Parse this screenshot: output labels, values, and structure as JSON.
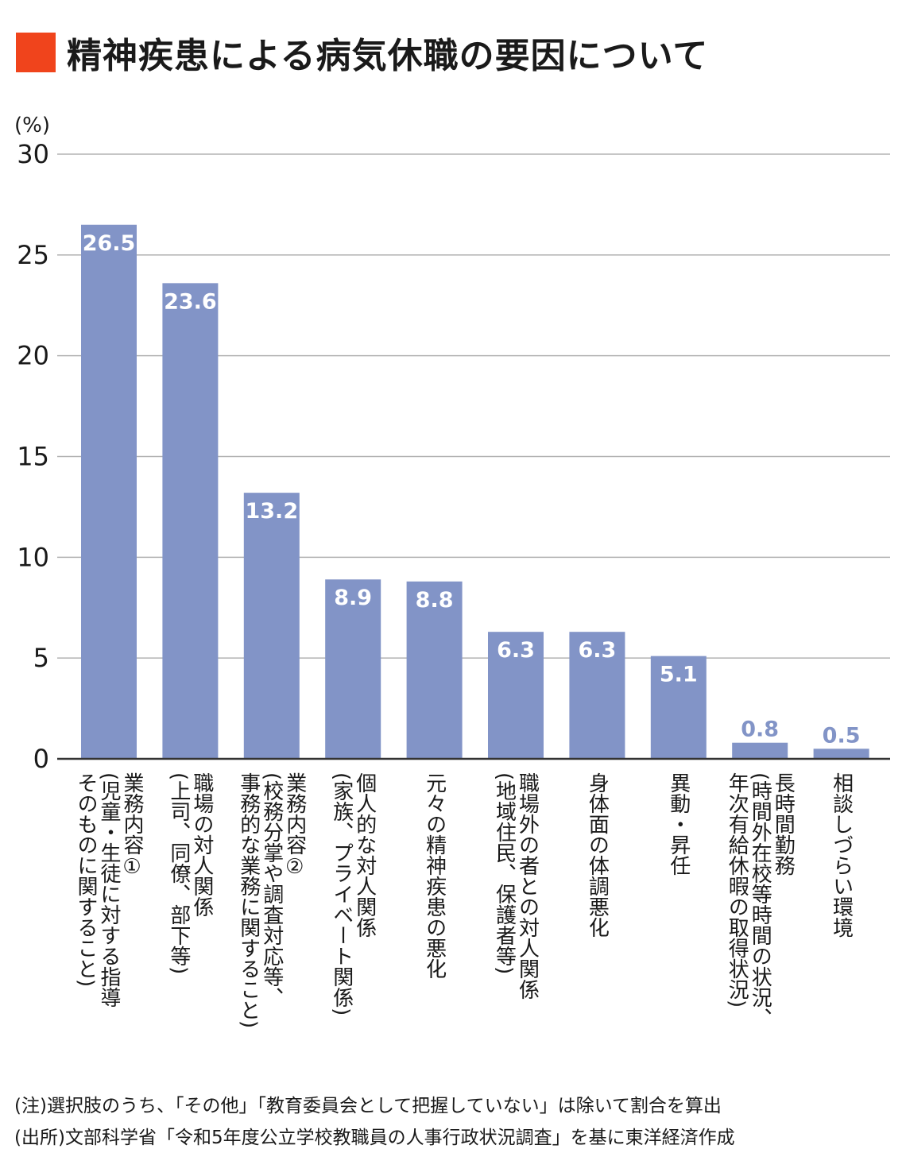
{
  "title": "精神疾患による病気休職の要因について",
  "colors": {
    "accent": "#f0441c",
    "bar": "#8294c7",
    "grid": "#b3b3b3",
    "axis": "#333333"
  },
  "chart_data": {
    "type": "bar",
    "title": "精神疾患による病気休職の要因について",
    "ylabel": "(%)",
    "ylim": [
      0,
      30
    ],
    "yticks": [
      "0",
      "5",
      "10",
      "15",
      "20",
      "25",
      "30"
    ],
    "grid": true,
    "categories": [
      [
        "業務内容①",
        "(児童・生徒に対する指導",
        "そのものに関すること)"
      ],
      [
        "職場の対人関係",
        "(上司、同僚、部下等)"
      ],
      [
        "業務内容②",
        "(校務分掌や調査対応等、",
        "事務的な業務に関すること)"
      ],
      [
        "個人的な対人関係",
        "(家族、プライベート関係)"
      ],
      [
        "元々の精神疾患の悪化"
      ],
      [
        "職場外の者との対人関係",
        "(地域住民、保護者等)"
      ],
      [
        "身体面の体調悪化"
      ],
      [
        "異動・昇任"
      ],
      [
        "長時間勤務",
        "(時間外在校等時間の状況、",
        "年次有給休暇の取得状況)"
      ],
      [
        "相談しづらい環境"
      ]
    ],
    "values": [
      26.5,
      23.6,
      13.2,
      8.9,
      8.8,
      6.3,
      6.3,
      5.1,
      0.8,
      0.5
    ],
    "value_labels": [
      "26.5",
      "23.6",
      "13.2",
      "8.9",
      "8.8",
      "6.3",
      "6.3",
      "5.1",
      "0.8",
      "0.5"
    ]
  },
  "notes": [
    "(注)選択肢のうち、「その他」「教育委員会として把握していない」は除いて割合を算出",
    "(出所)文部科学省「令和5年度公立学校教職員の人事行政状況調査」を基に東洋経済作成"
  ]
}
